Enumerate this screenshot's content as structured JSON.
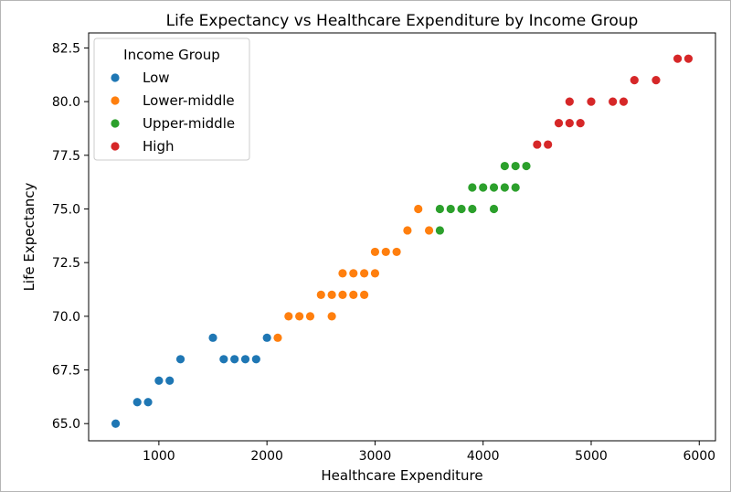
{
  "chart_data": {
    "type": "scatter",
    "title": "Life Expectancy vs Healthcare Expenditure by Income Group",
    "xlabel": "Healthcare Expenditure",
    "ylabel": "Life Expectancy",
    "xlim": [
      350,
      6150
    ],
    "ylim": [
      64.2,
      83.2
    ],
    "xticks": [
      1000,
      2000,
      3000,
      4000,
      5000,
      6000
    ],
    "xtick_labels": [
      "1000",
      "2000",
      "3000",
      "4000",
      "5000",
      "6000"
    ],
    "yticks": [
      65.0,
      67.5,
      70.0,
      72.5,
      75.0,
      77.5,
      80.0,
      82.5
    ],
    "ytick_labels": [
      "65.0",
      "67.5",
      "70.0",
      "72.5",
      "75.0",
      "77.5",
      "80.0",
      "82.5"
    ],
    "grid": false,
    "legend": {
      "title": "Income Group",
      "placement": "top-left"
    },
    "series": [
      {
        "name": "Low",
        "color": "#1f77b4",
        "points": [
          [
            600,
            65
          ],
          [
            800,
            66
          ],
          [
            900,
            66
          ],
          [
            1000,
            67
          ],
          [
            1100,
            67
          ],
          [
            1200,
            68
          ],
          [
            1500,
            69
          ],
          [
            1600,
            68
          ],
          [
            1700,
            68
          ],
          [
            1800,
            68
          ],
          [
            1900,
            68
          ],
          [
            2000,
            69
          ]
        ]
      },
      {
        "name": "Lower-middle",
        "color": "#ff7f0e",
        "points": [
          [
            2100,
            69
          ],
          [
            2200,
            70
          ],
          [
            2300,
            70
          ],
          [
            2400,
            70
          ],
          [
            2500,
            71
          ],
          [
            2600,
            71
          ],
          [
            2600,
            70
          ],
          [
            2700,
            72
          ],
          [
            2700,
            71
          ],
          [
            2800,
            72
          ],
          [
            2800,
            71
          ],
          [
            2900,
            72
          ],
          [
            2900,
            71
          ],
          [
            3000,
            73
          ],
          [
            3000,
            72
          ],
          [
            3100,
            73
          ],
          [
            3200,
            73
          ],
          [
            3300,
            74
          ],
          [
            3400,
            75
          ],
          [
            3500,
            74
          ]
        ]
      },
      {
        "name": "Upper-middle",
        "color": "#2ca02c",
        "points": [
          [
            3600,
            75
          ],
          [
            3600,
            74
          ],
          [
            3700,
            75
          ],
          [
            3800,
            75
          ],
          [
            3900,
            76
          ],
          [
            3900,
            75
          ],
          [
            4000,
            76
          ],
          [
            4100,
            76
          ],
          [
            4100,
            75
          ],
          [
            4200,
            77
          ],
          [
            4200,
            76
          ],
          [
            4300,
            77
          ],
          [
            4300,
            76
          ],
          [
            4400,
            77
          ]
        ]
      },
      {
        "name": "High",
        "color": "#d62728",
        "points": [
          [
            4500,
            78
          ],
          [
            4600,
            78
          ],
          [
            4700,
            79
          ],
          [
            4800,
            80
          ],
          [
            4800,
            79
          ],
          [
            4900,
            79
          ],
          [
            5000,
            80
          ],
          [
            5200,
            80
          ],
          [
            5300,
            80
          ],
          [
            5400,
            81
          ],
          [
            5600,
            81
          ],
          [
            5800,
            82
          ],
          [
            5900,
            82
          ]
        ]
      }
    ]
  }
}
